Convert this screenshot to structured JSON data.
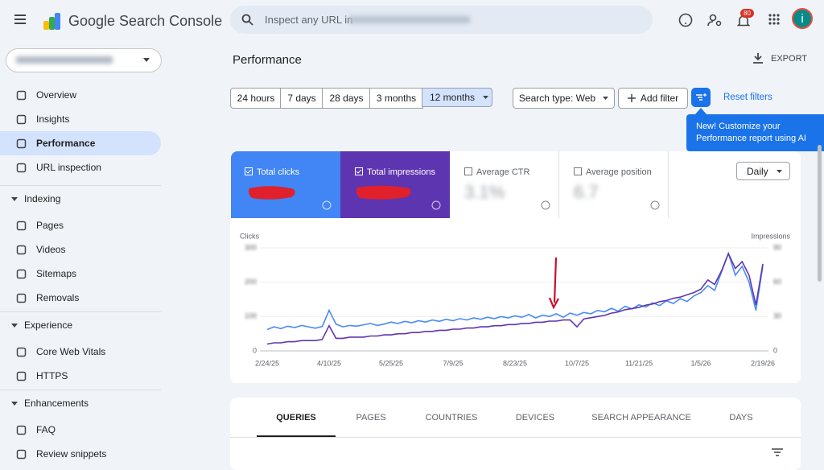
{
  "header": {
    "product": "Google Search Console",
    "search_placeholder": "Inspect any URL in",
    "notifications": "80",
    "avatar": "i"
  },
  "nav_top": [
    "Overview",
    "Insights",
    "Performance",
    "URL inspection"
  ],
  "sections": [
    {
      "title": "Indexing",
      "items": [
        "Pages",
        "Videos",
        "Sitemaps",
        "Removals"
      ]
    },
    {
      "title": "Experience",
      "items": [
        "Core Web Vitals",
        "HTTPS"
      ]
    },
    {
      "title": "Enhancements",
      "items": [
        "FAQ",
        "Review snippets"
      ]
    }
  ],
  "page": {
    "title": "Performance",
    "export": "EXPORT"
  },
  "filters": {
    "ranges": [
      "24 hours",
      "7 days",
      "28 days",
      "3 months",
      "12 months"
    ],
    "search_type": "Search type: Web",
    "add_filter": "Add filter",
    "reset": "Reset filters"
  },
  "tooltip": "New! Customize your Performance report using AI",
  "metrics": [
    {
      "label": "Total clicks"
    },
    {
      "label": "Total impressions"
    },
    {
      "label": "Average CTR",
      "value": "3.1%"
    },
    {
      "label": "Average position",
      "value": "6.7"
    }
  ],
  "granularity": "Daily",
  "chart_data": {
    "type": "line",
    "ylabel": "Clicks",
    "y2label": "Impressions",
    "categories": [
      "2/24/25",
      null,
      null,
      null,
      null,
      null,
      null,
      null,
      null,
      "4/10/25",
      null,
      null,
      null,
      null,
      null,
      null,
      null,
      null,
      "5/25/25",
      null,
      null,
      null,
      null,
      null,
      null,
      null,
      null,
      "7/9/25",
      null,
      null,
      null,
      null,
      null,
      null,
      null,
      null,
      "8/23/25",
      null,
      null,
      null,
      null,
      null,
      null,
      null,
      null,
      "10/7/25",
      null,
      null,
      null,
      null,
      null,
      null,
      null,
      null,
      "11/21/25",
      null,
      null,
      null,
      null,
      null,
      null,
      null,
      null,
      "1/5/26",
      null,
      null,
      null,
      null,
      null,
      null,
      null,
      null,
      "2/19/26"
    ],
    "series": [
      {
        "name": "Total clicks",
        "color": "#4a8af4",
        "values": [
          62,
          70,
          65,
          72,
          68,
          74,
          70,
          66,
          71,
          118,
          78,
          70,
          74,
          72,
          76,
          80,
          74,
          78,
          84,
          80,
          86,
          82,
          88,
          84,
          90,
          86,
          92,
          88,
          94,
          90,
          96,
          92,
          98,
          94,
          100,
          96,
          102,
          98,
          106,
          96,
          104,
          100,
          108,
          98,
          110,
          104,
          112,
          108,
          118,
          114,
          124,
          116,
          130,
          122,
          134,
          128,
          140,
          132,
          146,
          138,
          152,
          144,
          160,
          170,
          190,
          176,
          230,
          284,
          220,
          246,
          200,
          118,
          248
        ]
      },
      {
        "name": "Total impressions",
        "color": "#5e35b1",
        "axis": "y2",
        "values": [
          6,
          7,
          7,
          8,
          8,
          9,
          9,
          9,
          10,
          22,
          11,
          11,
          12,
          12,
          12,
          13,
          13,
          14,
          14,
          15,
          15,
          16,
          16,
          17,
          17,
          18,
          18,
          19,
          19,
          20,
          20,
          21,
          21,
          22,
          22,
          23,
          23,
          24,
          24,
          25,
          25,
          26,
          26,
          27,
          27,
          21,
          28,
          29,
          30,
          31,
          33,
          34,
          36,
          37,
          38,
          40,
          41,
          43,
          44,
          46,
          47,
          49,
          51,
          54,
          62,
          58,
          70,
          85,
          72,
          78,
          66,
          40,
          76
        ]
      }
    ],
    "ylim": [
      0,
      300
    ],
    "yticks": [
      0,
      100,
      200,
      300
    ],
    "y2lim": [
      0,
      90
    ],
    "y2ticks": [
      0,
      30,
      60,
      90
    ],
    "grid": true
  },
  "tabs": [
    "QUERIES",
    "PAGES",
    "COUNTRIES",
    "DEVICES",
    "SEARCH APPEARANCE",
    "DAYS"
  ]
}
